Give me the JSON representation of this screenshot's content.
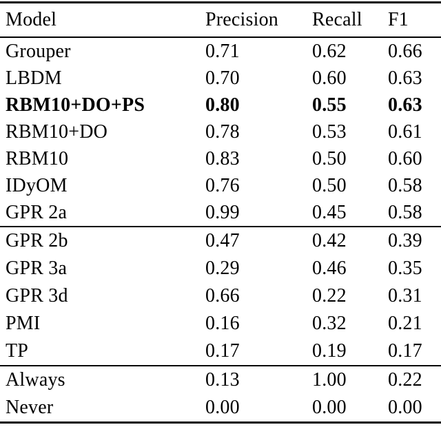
{
  "page": {
    "background": "#ffffff",
    "text_color": "#000000",
    "rule_color": "#000000"
  },
  "chart_data": {
    "type": "table",
    "title": "",
    "columns": [
      "Model",
      "Precision",
      "Recall",
      "F1"
    ],
    "highlighted_row": "RBM10+DO+PS",
    "sections": [
      {
        "rows": [
          {
            "cells": [
              "Grouper",
              "0.71",
              "0.62",
              "0.66"
            ],
            "bold": false
          },
          {
            "cells": [
              "LBDM",
              "0.70",
              "0.60",
              "0.63"
            ],
            "bold": false
          },
          {
            "cells": [
              "RBM10+DO+PS",
              "0.80",
              "0.55",
              "0.63"
            ],
            "bold": true
          },
          {
            "cells": [
              "RBM10+DO",
              "0.78",
              "0.53",
              "0.61"
            ],
            "bold": false
          },
          {
            "cells": [
              "RBM10",
              "0.83",
              "0.50",
              "0.60"
            ],
            "bold": false
          },
          {
            "cells": [
              "IDyOM",
              "0.76",
              "0.50",
              "0.58"
            ],
            "bold": false
          },
          {
            "cells": [
              "GPR 2a",
              "0.99",
              "0.45",
              "0.58"
            ],
            "bold": false
          }
        ]
      },
      {
        "rows": [
          {
            "cells": [
              "GPR 2b",
              "0.47",
              "0.42",
              "0.39"
            ],
            "bold": false
          },
          {
            "cells": [
              "GPR 3a",
              "0.29",
              "0.46",
              "0.35"
            ],
            "bold": false
          },
          {
            "cells": [
              "GPR 3d",
              "0.66",
              "0.22",
              "0.31"
            ],
            "bold": false
          },
          {
            "cells": [
              "PMI",
              "0.16",
              "0.32",
              "0.21"
            ],
            "bold": false
          },
          {
            "cells": [
              "TP",
              "0.17",
              "0.19",
              "0.17"
            ],
            "bold": false
          }
        ]
      },
      {
        "rows": [
          {
            "cells": [
              "Always",
              "0.13",
              "1.00",
              "0.22"
            ],
            "bold": false
          },
          {
            "cells": [
              "Never",
              "0.00",
              "0.00",
              "0.00"
            ],
            "bold": false
          }
        ]
      }
    ]
  }
}
